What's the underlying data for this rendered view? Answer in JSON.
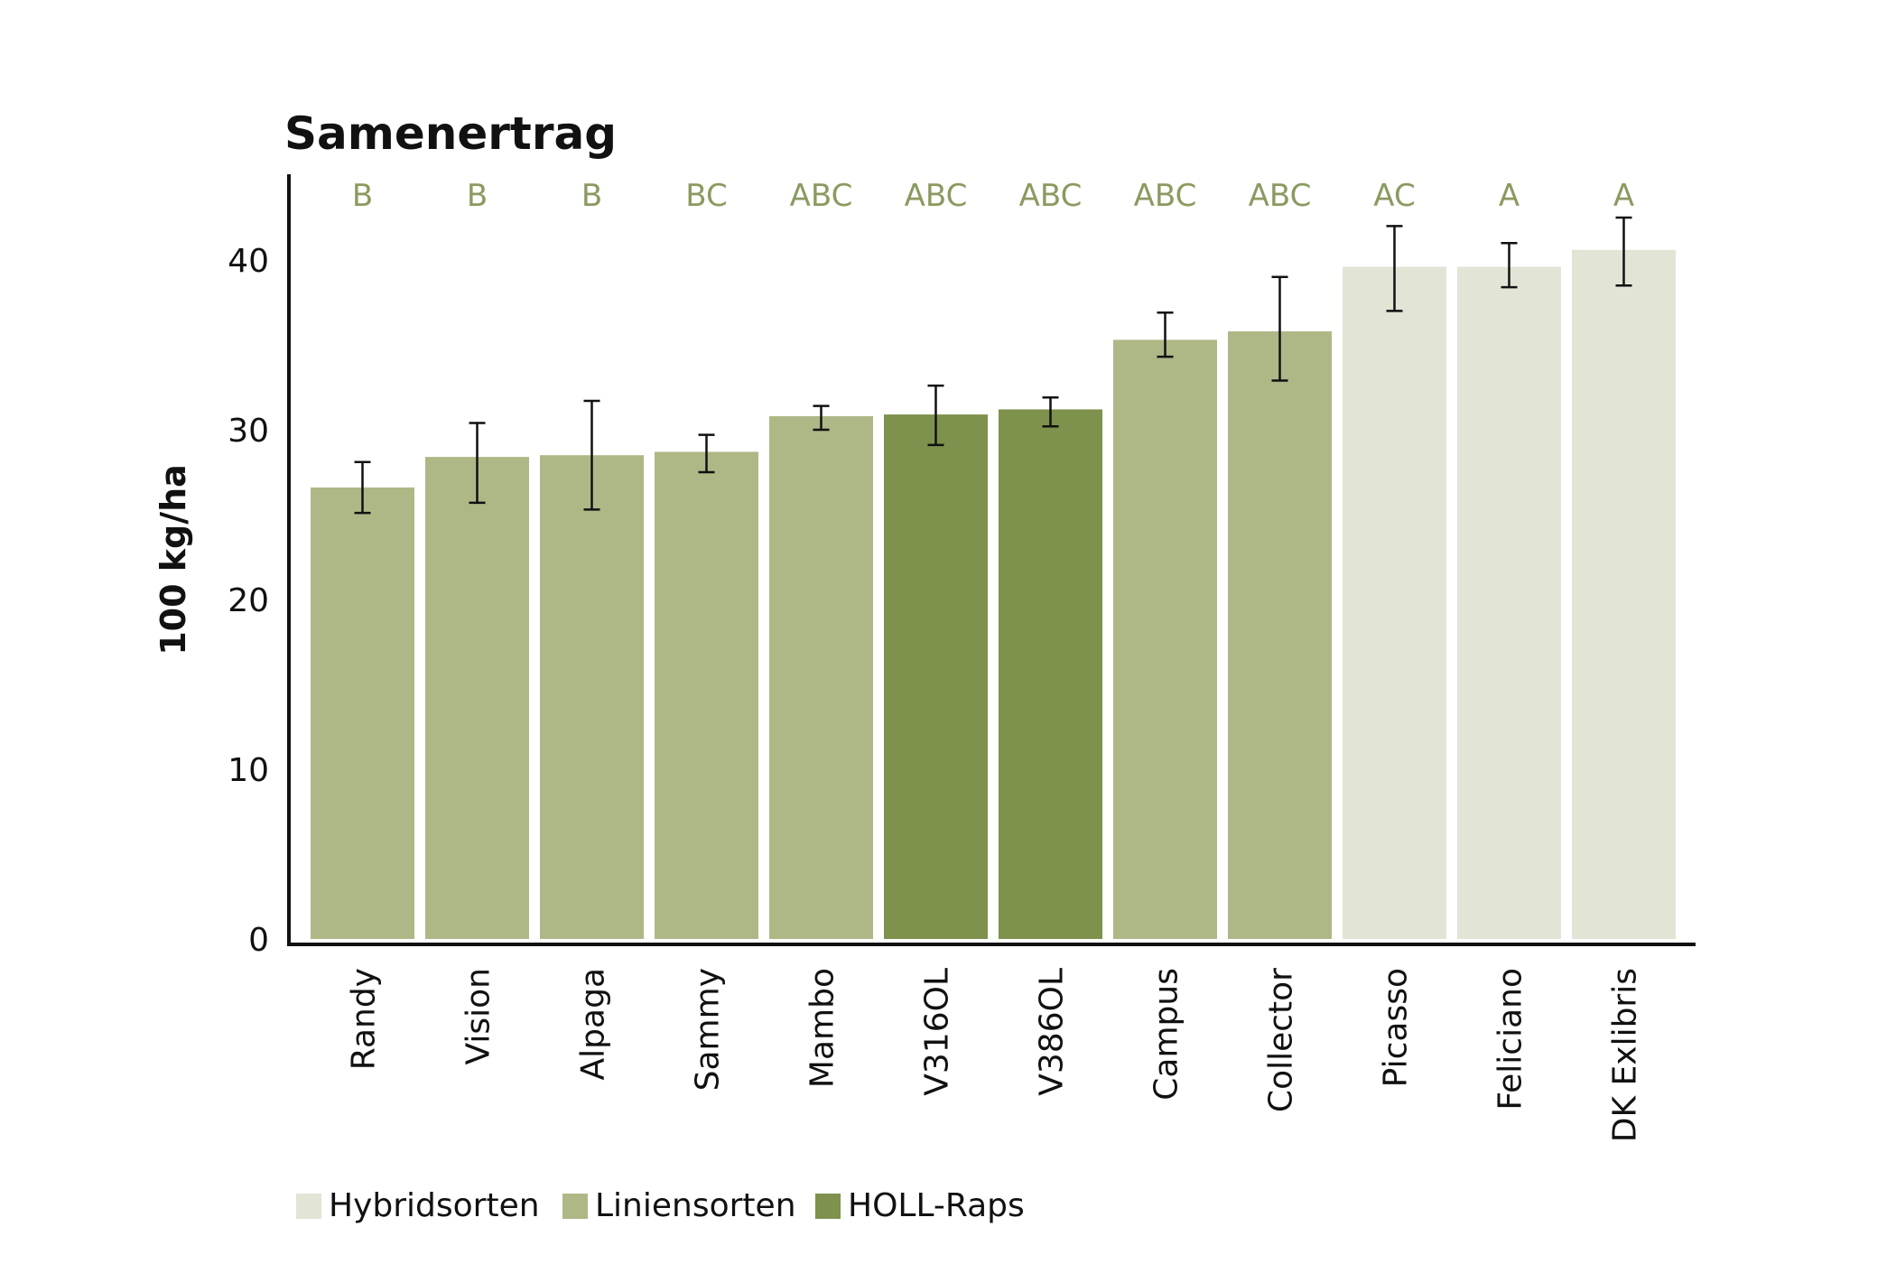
{
  "chart_data": {
    "type": "bar",
    "title": "Samenertrag",
    "ylabel": "100 kg/ha",
    "xlabel": "",
    "ylim": [
      0,
      45
    ],
    "yticks": [
      "0",
      "10",
      "20",
      "30",
      "40"
    ],
    "categories": [
      "Randy",
      "Vision",
      "Alpaga",
      "Sammy",
      "Mambo",
      "V316OL",
      "V386OL",
      "Campus",
      "Collector",
      "Picasso",
      "Feliciano",
      "DK Exlibris"
    ],
    "values": [
      26.6,
      28.4,
      28.5,
      28.7,
      30.8,
      30.9,
      31.2,
      35.3,
      35.8,
      39.6,
      39.6,
      40.6
    ],
    "error_low": [
      25.1,
      25.7,
      25.3,
      27.5,
      30.0,
      29.1,
      30.2,
      34.3,
      32.9,
      37.0,
      38.4,
      38.5
    ],
    "error_high": [
      28.1,
      30.4,
      31.7,
      29.7,
      31.4,
      32.6,
      31.9,
      36.9,
      39.0,
      42.0,
      41.0,
      42.5
    ],
    "groups": [
      "B",
      "B",
      "B",
      "BC",
      "ABC",
      "ABC",
      "ABC",
      "ABC",
      "ABC",
      "AC",
      "A",
      "A"
    ],
    "bar_types": [
      "lin",
      "lin",
      "lin",
      "lin",
      "lin",
      "holl",
      "holl",
      "lin",
      "lin",
      "hyb",
      "hyb",
      "hyb"
    ],
    "legend": [
      {
        "key": "hyb",
        "label": "Hybridsorten",
        "color": "#e2e4d6"
      },
      {
        "key": "lin",
        "label": "Liniensorten",
        "color": "#aeb887"
      },
      {
        "key": "holl",
        "label": "HOLL-Raps",
        "color": "#7e914d"
      }
    ],
    "legend_position": "bottom-left",
    "group_label_color": "#8a9a60",
    "grid": false
  }
}
